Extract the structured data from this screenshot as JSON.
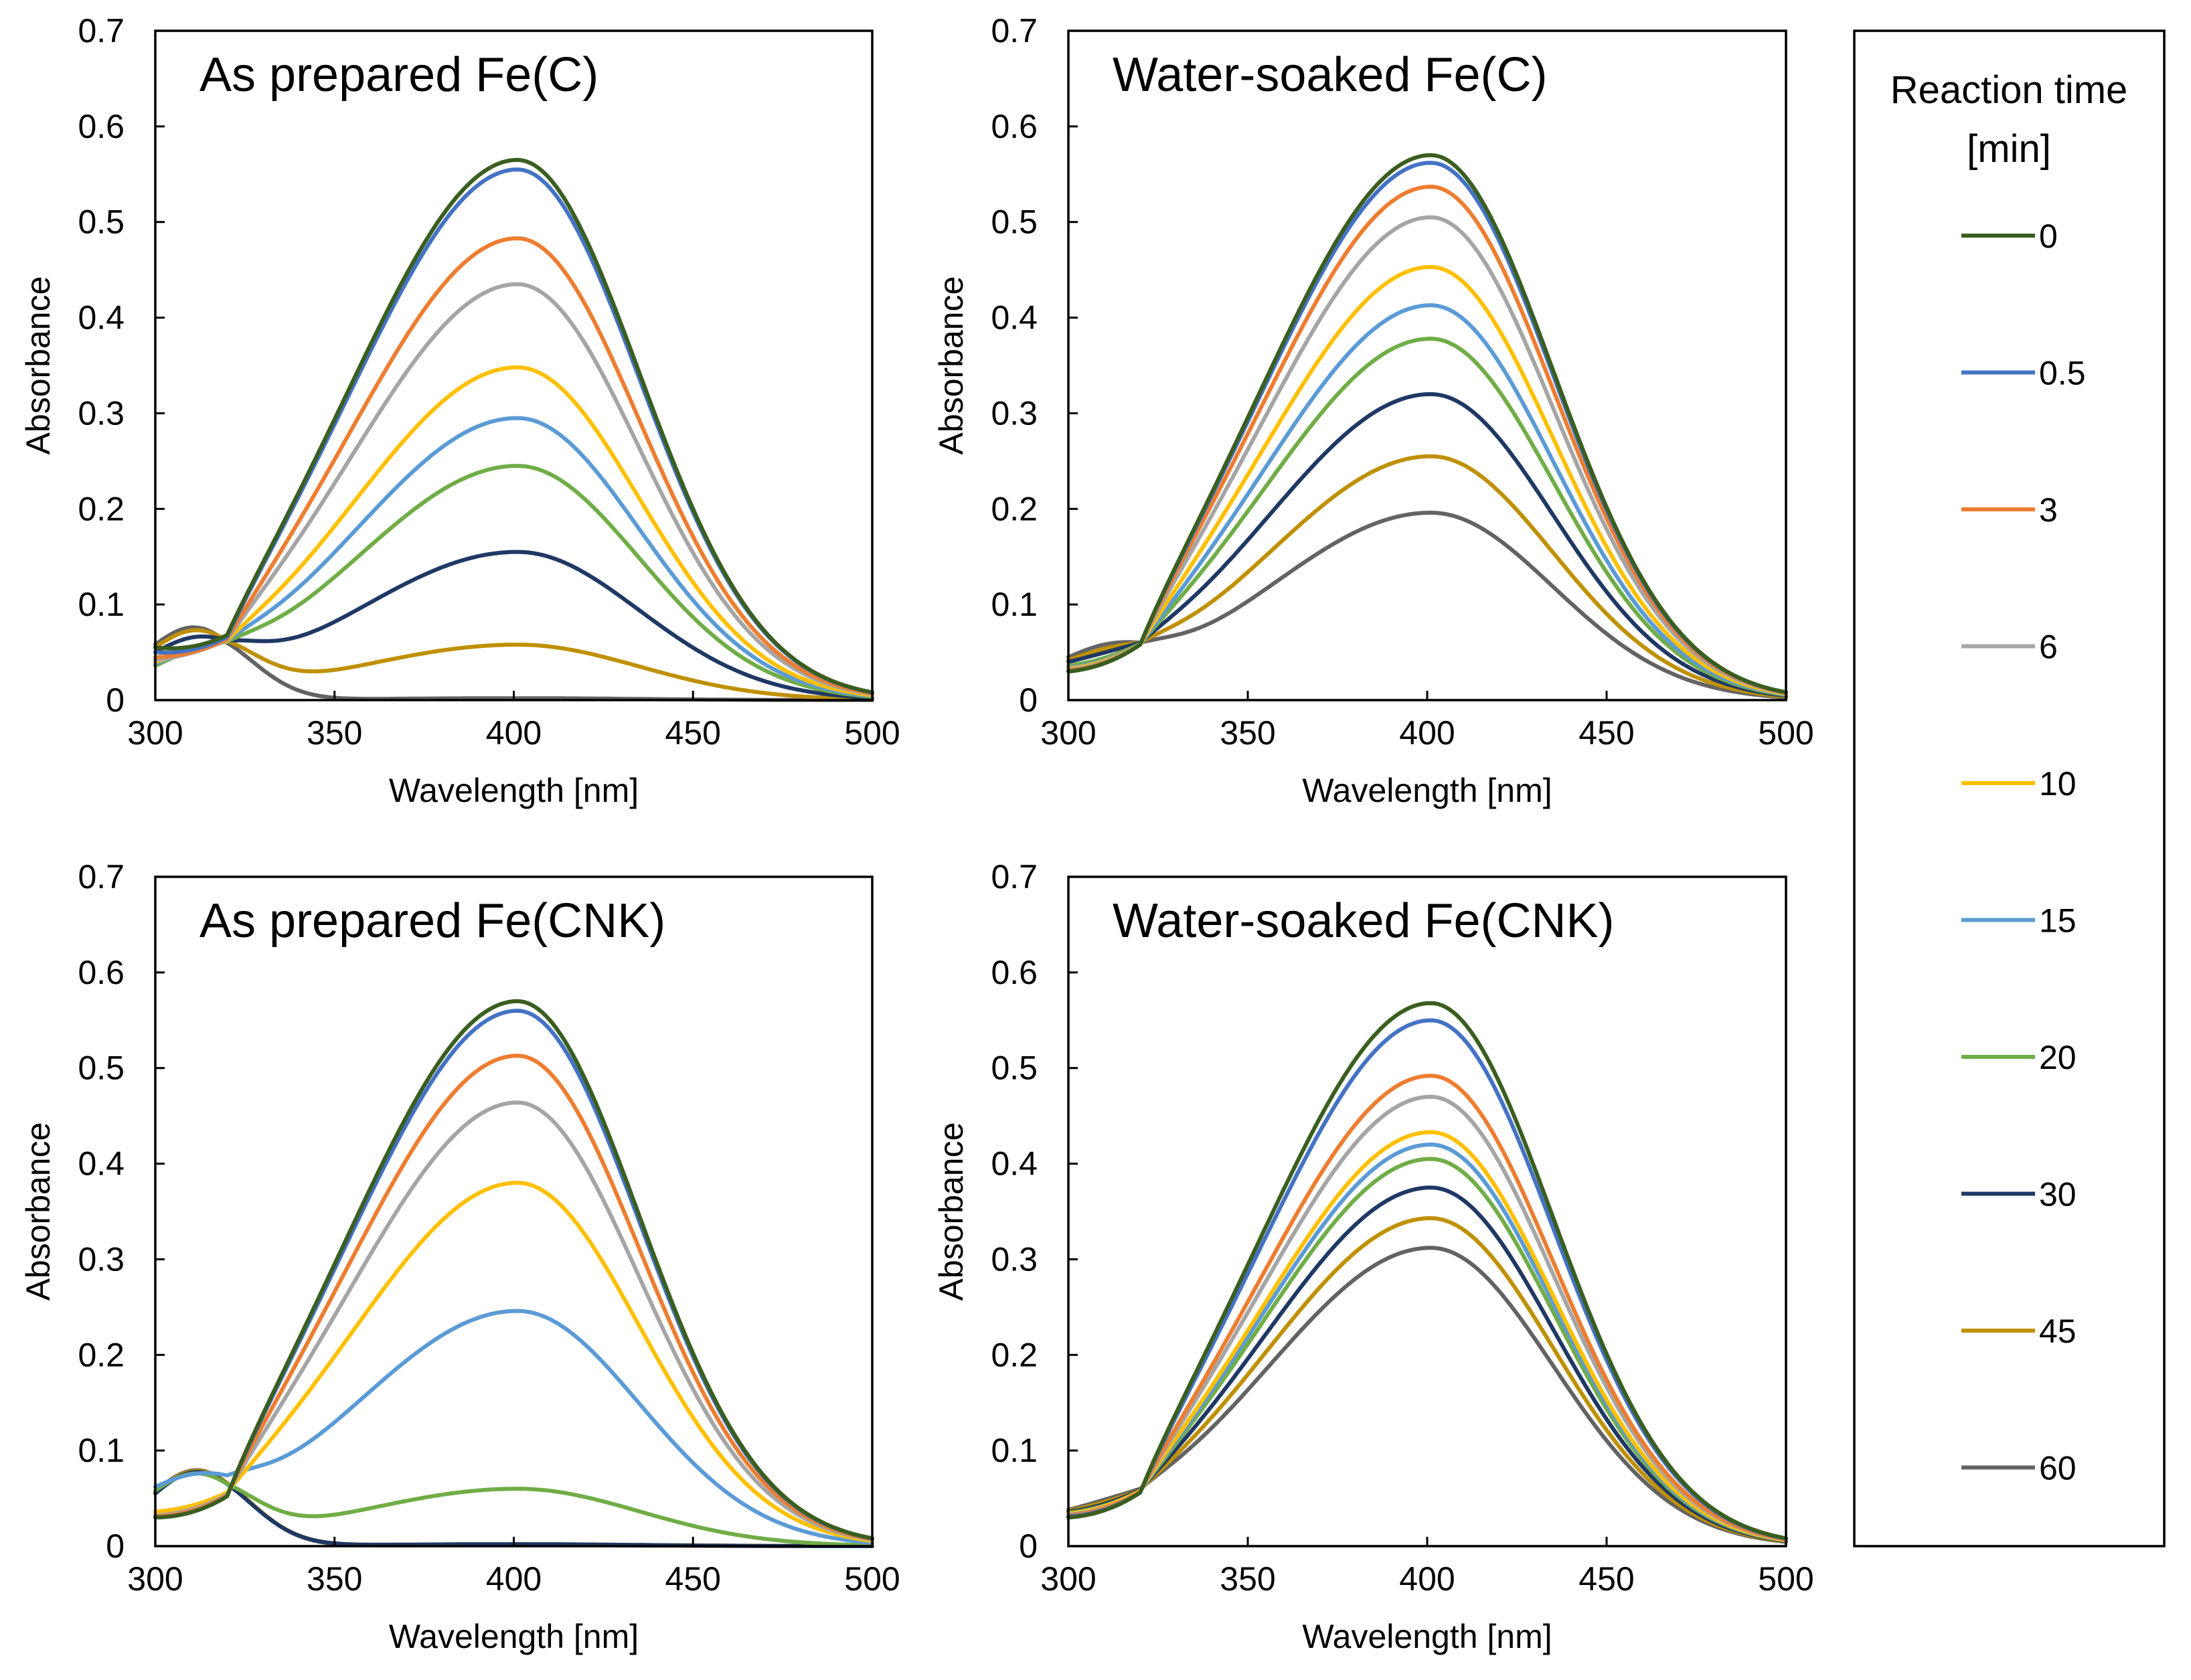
{
  "chart_data": {
    "type": "line",
    "shared_axes": {
      "xlabel": "Wavelength [nm]",
      "ylabel": "Absorbance",
      "xlim": [
        300,
        500
      ],
      "ylim": [
        0,
        0.7
      ],
      "xticks": [
        300,
        350,
        400,
        450,
        500
      ],
      "yticks": [
        0,
        0.1,
        0.2,
        0.3,
        0.4,
        0.5,
        0.6,
        0.7
      ],
      "xtick_labels": [
        "300",
        "350",
        "400",
        "450",
        "500"
      ],
      "ytick_labels": [
        "0",
        "0.1",
        "0.2",
        "0.3",
        "0.4",
        "0.5",
        "0.6",
        "0.7"
      ],
      "grid": false
    },
    "legend": {
      "title_lines": [
        "Reaction time",
        "[min]"
      ],
      "placement": "right",
      "entries": [
        {
          "label": "0",
          "color": "#3a5e1f"
        },
        {
          "label": "0.5",
          "color": "#4472c4"
        },
        {
          "label": "3",
          "color": "#ed7d31"
        },
        {
          "label": "6",
          "color": "#a5a5a5"
        },
        {
          "label": "10",
          "color": "#ffc000"
        },
        {
          "label": "15",
          "color": "#5b9bd5"
        },
        {
          "label": "20",
          "color": "#70ad47"
        },
        {
          "label": "30",
          "color": "#1f3864"
        },
        {
          "label": "45",
          "color": "#bf9000"
        },
        {
          "label": "60",
          "color": "#636363"
        }
      ]
    },
    "panels": [
      {
        "title": "As prepared Fe(C)",
        "peak_wavelength": 401,
        "series": [
          {
            "name": "0",
            "peak": 0.565,
            "at300": 0.055,
            "at312": 0.075,
            "at320": 0.068
          },
          {
            "name": "0.5",
            "peak": 0.555,
            "at300": 0.05,
            "at312": 0.072,
            "at320": 0.066
          },
          {
            "name": "3",
            "peak": 0.483,
            "at300": 0.045,
            "at312": 0.068,
            "at320": 0.064
          },
          {
            "name": "6",
            "peak": 0.435,
            "at300": 0.042,
            "at312": 0.066,
            "at320": 0.063
          },
          {
            "name": "10",
            "peak": 0.348,
            "at300": 0.04,
            "at312": 0.064,
            "at320": 0.062
          },
          {
            "name": "15",
            "peak": 0.295,
            "at300": 0.038,
            "at312": 0.063,
            "at320": 0.062
          },
          {
            "name": "20",
            "peak": 0.245,
            "at300": 0.036,
            "at312": 0.062,
            "at320": 0.061
          },
          {
            "name": "30",
            "peak": 0.155,
            "at300": 0.05,
            "at312": 0.072,
            "at320": 0.062
          },
          {
            "name": "45",
            "peak": 0.058,
            "at300": 0.055,
            "at312": 0.076,
            "at320": 0.062
          },
          {
            "name": "60",
            "peak": 0.002,
            "at300": 0.058,
            "at312": 0.078,
            "at320": 0.06
          }
        ]
      },
      {
        "title": "Water-soaked Fe(C)",
        "peak_wavelength": 401,
        "series": [
          {
            "name": "0",
            "peak": 0.57,
            "at300": 0.03,
            "at312": 0.05,
            "at320": 0.058
          },
          {
            "name": "0.5",
            "peak": 0.562,
            "at300": 0.03,
            "at312": 0.05,
            "at320": 0.058
          },
          {
            "name": "3",
            "peak": 0.537,
            "at300": 0.031,
            "at312": 0.051,
            "at320": 0.058
          },
          {
            "name": "6",
            "peak": 0.505,
            "at300": 0.032,
            "at312": 0.052,
            "at320": 0.058
          },
          {
            "name": "10",
            "peak": 0.453,
            "at300": 0.033,
            "at312": 0.053,
            "at320": 0.058
          },
          {
            "name": "15",
            "peak": 0.413,
            "at300": 0.034,
            "at312": 0.054,
            "at320": 0.058
          },
          {
            "name": "20",
            "peak": 0.378,
            "at300": 0.036,
            "at312": 0.055,
            "at320": 0.059
          },
          {
            "name": "30",
            "peak": 0.32,
            "at300": 0.04,
            "at312": 0.058,
            "at320": 0.06
          },
          {
            "name": "45",
            "peak": 0.255,
            "at300": 0.042,
            "at312": 0.06,
            "at320": 0.06
          },
          {
            "name": "60",
            "peak": 0.196,
            "at300": 0.045,
            "at312": 0.062,
            "at320": 0.06
          }
        ]
      },
      {
        "title": "As prepared Fe(CNK)",
        "peak_wavelength": 401,
        "series": [
          {
            "name": "0",
            "peak": 0.57,
            "at300": 0.03,
            "at312": 0.045,
            "at320": 0.052
          },
          {
            "name": "0.5",
            "peak": 0.56,
            "at300": 0.03,
            "at312": 0.045,
            "at320": 0.052
          },
          {
            "name": "3",
            "peak": 0.513,
            "at300": 0.031,
            "at312": 0.046,
            "at320": 0.053
          },
          {
            "name": "6",
            "peak": 0.464,
            "at300": 0.032,
            "at312": 0.047,
            "at320": 0.054
          },
          {
            "name": "10",
            "peak": 0.38,
            "at300": 0.036,
            "at312": 0.05,
            "at320": 0.056
          },
          {
            "name": "15",
            "peak": 0.246,
            "at300": 0.062,
            "at312": 0.078,
            "at320": 0.074
          },
          {
            "name": "20",
            "peak": 0.06,
            "at300": 0.058,
            "at312": 0.076,
            "at320": 0.065
          },
          {
            "name": "30",
            "peak": 0.002,
            "at300": 0.055,
            "at312": 0.078,
            "at320": 0.065
          },
          {
            "name": "45",
            "peak": 0.002,
            "at300": 0.056,
            "at312": 0.079,
            "at320": 0.066
          },
          {
            "name": "60",
            "peak": 0.001,
            "at300": 0.057,
            "at312": 0.08,
            "at320": 0.066
          }
        ]
      },
      {
        "title": "Water-soaked Fe(CNK)",
        "peak_wavelength": 401,
        "series": [
          {
            "name": "0",
            "peak": 0.568,
            "at300": 0.03,
            "at312": 0.048,
            "at320": 0.056
          },
          {
            "name": "0.5",
            "peak": 0.55,
            "at300": 0.031,
            "at312": 0.049,
            "at320": 0.056
          },
          {
            "name": "3",
            "peak": 0.492,
            "at300": 0.032,
            "at312": 0.05,
            "at320": 0.057
          },
          {
            "name": "6",
            "peak": 0.47,
            "at300": 0.033,
            "at312": 0.051,
            "at320": 0.057
          },
          {
            "name": "10",
            "peak": 0.433,
            "at300": 0.034,
            "at312": 0.052,
            "at320": 0.058
          },
          {
            "name": "15",
            "peak": 0.42,
            "at300": 0.034,
            "at312": 0.052,
            "at320": 0.058
          },
          {
            "name": "20",
            "peak": 0.405,
            "at300": 0.035,
            "at312": 0.053,
            "at320": 0.058
          },
          {
            "name": "30",
            "peak": 0.375,
            "at300": 0.036,
            "at312": 0.054,
            "at320": 0.059
          },
          {
            "name": "45",
            "peak": 0.343,
            "at300": 0.037,
            "at312": 0.055,
            "at320": 0.059
          },
          {
            "name": "60",
            "peak": 0.312,
            "at300": 0.038,
            "at312": 0.056,
            "at320": 0.06
          }
        ]
      }
    ]
  }
}
